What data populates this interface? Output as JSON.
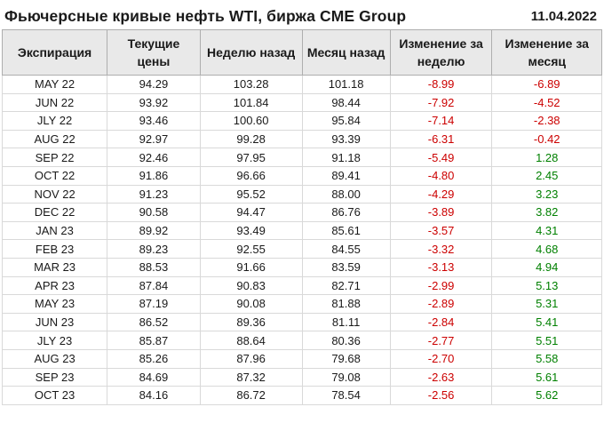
{
  "chart_data": {
    "type": "table",
    "title": "Фьючерсные кривые нефть WTI, биржа CME Group",
    "date": "11.04.2022",
    "columns": [
      "Экспирация",
      "Текущие цены",
      "Неделю назад",
      "Месяц назад",
      "Изменение за неделю",
      "Изменение за месяц"
    ],
    "rows": [
      [
        "MAY 22",
        "94.29",
        "103.28",
        "101.18",
        "-8.99",
        "-6.89"
      ],
      [
        "JUN 22",
        "93.92",
        "101.84",
        "98.44",
        "-7.92",
        "-4.52"
      ],
      [
        "JLY 22",
        "93.46",
        "100.60",
        "95.84",
        "-7.14",
        "-2.38"
      ],
      [
        "AUG 22",
        "92.97",
        "99.28",
        "93.39",
        "-6.31",
        "-0.42"
      ],
      [
        "SEP 22",
        "92.46",
        "97.95",
        "91.18",
        "-5.49",
        "1.28"
      ],
      [
        "OCT 22",
        "91.86",
        "96.66",
        "89.41",
        "-4.80",
        "2.45"
      ],
      [
        "NOV 22",
        "91.23",
        "95.52",
        "88.00",
        "-4.29",
        "3.23"
      ],
      [
        "DEC 22",
        "90.58",
        "94.47",
        "86.76",
        "-3.89",
        "3.82"
      ],
      [
        "JAN 23",
        "89.92",
        "93.49",
        "85.61",
        "-3.57",
        "4.31"
      ],
      [
        "FEB 23",
        "89.23",
        "92.55",
        "84.55",
        "-3.32",
        "4.68"
      ],
      [
        "MAR 23",
        "88.53",
        "91.66",
        "83.59",
        "-3.13",
        "4.94"
      ],
      [
        "APR 23",
        "87.84",
        "90.83",
        "82.71",
        "-2.99",
        "5.13"
      ],
      [
        "MAY 23",
        "87.19",
        "90.08",
        "81.88",
        "-2.89",
        "5.31"
      ],
      [
        "JUN 23",
        "86.52",
        "89.36",
        "81.11",
        "-2.84",
        "5.41"
      ],
      [
        "JLY 23",
        "85.87",
        "88.64",
        "80.36",
        "-2.77",
        "5.51"
      ],
      [
        "AUG 23",
        "85.26",
        "87.96",
        "79.68",
        "-2.70",
        "5.58"
      ],
      [
        "SEP 23",
        "84.69",
        "87.32",
        "79.08",
        "-2.63",
        "5.61"
      ],
      [
        "OCT 23",
        "84.16",
        "86.72",
        "78.54",
        "-2.56",
        "5.62"
      ]
    ]
  },
  "colors": {
    "negative_text": "#cc0000",
    "positive_text": "#008000",
    "header_bg": "#e9e9e9"
  }
}
